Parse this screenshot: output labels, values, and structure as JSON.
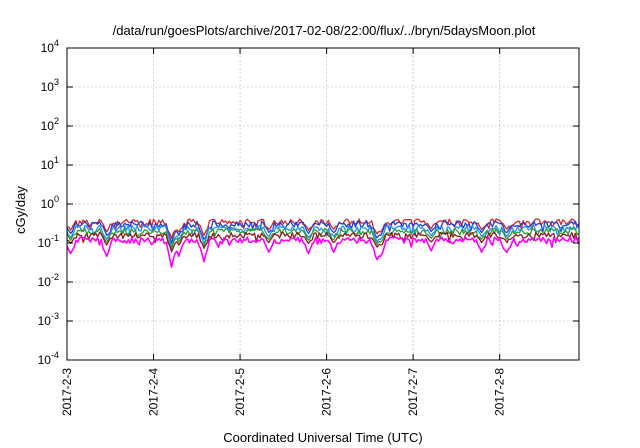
{
  "chart_data": {
    "type": "line",
    "title": "/data/run/goesPlots/archive/2017-02-08/22:00/flux/../bryn/5daysMoon.plot",
    "xlabel": "Coordinated Universal Time (UTC)",
    "ylabel": "cGy/day",
    "yscale": "log",
    "ylim": [
      0.0001,
      10000
    ],
    "y_ticks": [
      {
        "base": "10",
        "exp": "-4",
        "value": 0.0001
      },
      {
        "base": "10",
        "exp": "-3",
        "value": 0.001
      },
      {
        "base": "10",
        "exp": "-2",
        "value": 0.01
      },
      {
        "base": "10",
        "exp": "-1",
        "value": 0.1
      },
      {
        "base": "10",
        "exp": "0",
        "value": 1
      },
      {
        "base": "10",
        "exp": "1",
        "value": 10
      },
      {
        "base": "10",
        "exp": "2",
        "value": 100
      },
      {
        "base": "10",
        "exp": "3",
        "value": 1000
      },
      {
        "base": "10",
        "exp": "4",
        "value": 10000
      }
    ],
    "xlim": [
      "2017-02-03",
      "2017-02-08 22:00"
    ],
    "x_ticks": [
      "2017-2-3",
      "2017-2-4",
      "2017-2-5",
      "2017-2-6",
      "2017-2-7",
      "2017-2-8"
    ],
    "grid": true,
    "legend": "none",
    "series": [
      {
        "color": "#d62728",
        "level": 0.35,
        "min": 0.2,
        "dip_to": 0.13
      },
      {
        "color": "#1f3fd6",
        "level": 0.31,
        "min": 0.18,
        "dip_to": 0.1
      },
      {
        "color": "#1e90ff",
        "level": 0.24,
        "min": 0.14,
        "dip_to": 0.08
      },
      {
        "color": "#2ca02c",
        "level": 0.2,
        "min": 0.13,
        "dip_to": 0.07
      },
      {
        "color": "#8b1a1a",
        "level": 0.16,
        "min": 0.11,
        "dip_to": 0.06
      },
      {
        "color": "#ff00ff",
        "level": 0.12,
        "min": 0.08,
        "dip_to": 0.024
      }
    ],
    "dips": [
      {
        "time": "2017-02-03 01:00",
        "depth": 0.5
      },
      {
        "time": "2017-02-03 11:00",
        "depth": 0.6
      },
      {
        "time": "2017-02-04 05:00",
        "depth": 1.0
      },
      {
        "time": "2017-02-04 07:00",
        "depth": 0.6
      },
      {
        "time": "2017-02-04 14:00",
        "depth": 0.8
      },
      {
        "time": "2017-02-05 08:00",
        "depth": 0.45
      },
      {
        "time": "2017-02-05 19:00",
        "depth": 0.5
      },
      {
        "time": "2017-02-06 02:00",
        "depth": 0.45
      },
      {
        "time": "2017-02-06 14:00",
        "depth": 0.8
      },
      {
        "time": "2017-02-06 15:00",
        "depth": 0.6
      },
      {
        "time": "2017-02-07 05:00",
        "depth": 0.4
      },
      {
        "time": "2017-02-07 19:00",
        "depth": 0.45
      },
      {
        "time": "2017-02-08 02:00",
        "depth": 0.45
      }
    ]
  }
}
